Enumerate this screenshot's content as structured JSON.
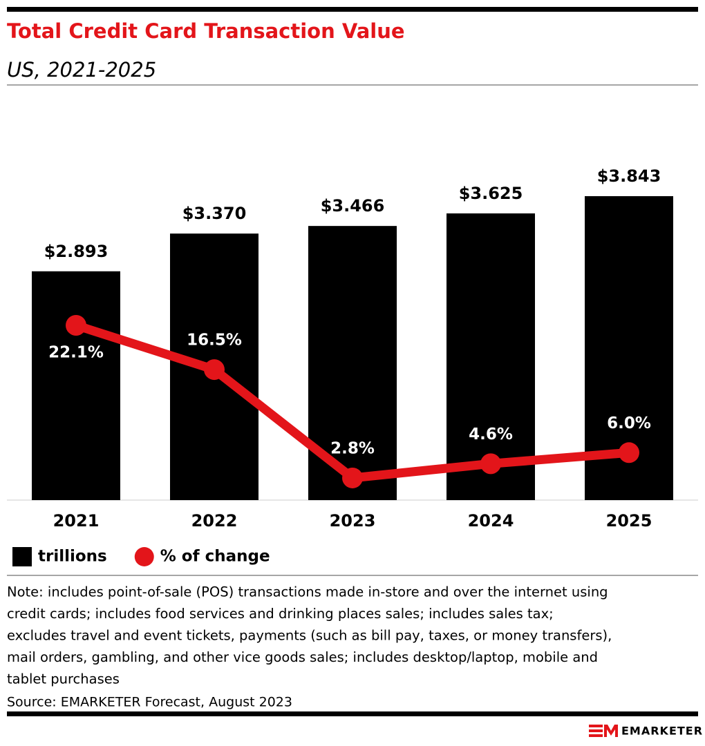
{
  "chart_data": {
    "type": "bar-line",
    "title": "Total Credit Card Transaction Value",
    "subtitle": "US, 2021-2025",
    "categories": [
      "2021",
      "2022",
      "2023",
      "2024",
      "2025"
    ],
    "series": [
      {
        "name": "trillions",
        "type": "bar",
        "color": "#000000",
        "values": [
          2.893,
          3.37,
          3.466,
          3.625,
          3.843
        ],
        "value_labels": [
          "$2.893",
          "$3.370",
          "$3.466",
          "$3.625",
          "$3.843"
        ]
      },
      {
        "name": "% of change",
        "type": "line",
        "axis": "y2",
        "color": "#e3151a",
        "values": [
          22.1,
          16.5,
          2.8,
          4.6,
          6.0
        ],
        "value_labels": [
          "22.1%",
          "16.5%",
          "2.8%",
          "4.6%",
          "6.0%"
        ]
      }
    ],
    "ylim": [
      0,
      4
    ],
    "y2lim": [
      0,
      40
    ],
    "note": [
      "Note: includes point-of-sale (POS) transactions made in-store and over the internet using",
      "credit cards; includes food services and drinking places sales; includes sales tax;",
      "excludes travel and event tickets, payments (such as bill pay, taxes, or money transfers),",
      "mail orders, gambling, and other vice goods sales; includes desktop/laptop, mobile and",
      "tablet purchases"
    ],
    "source": "Source: EMARKETER Forecast, August 2023",
    "logo": "EMARKETER"
  }
}
